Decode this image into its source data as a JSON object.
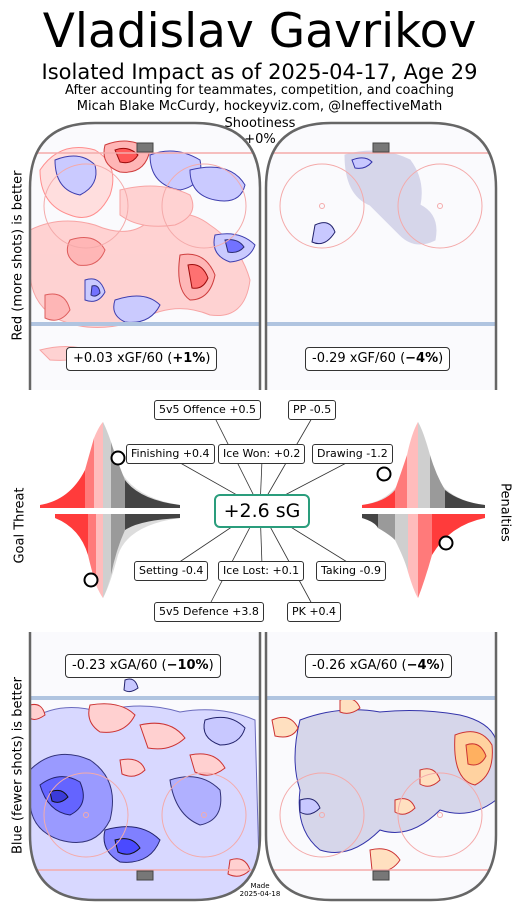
{
  "header": {
    "title": "Vladislav Gavrikov",
    "subtitle": "Isolated Impact as of 2025-04-17, Age 29",
    "credit_line1": "After accounting for teammates, competition, and coaching",
    "credit_line2": "Micah Blake McCurdy, hockeyviz.com, @IneffectiveMath"
  },
  "shootiness": {
    "label": "Shootiness",
    "value": "+0%"
  },
  "side_labels": {
    "top": "Red (more shots) is better",
    "middle": "Goal Threat",
    "bottom": "Blue (fewer shots) is better",
    "right": "Penalties"
  },
  "rink_stats": {
    "offence_even": {
      "value": "+0.03 xGF/60 (",
      "pct": "+1%",
      "close": ")"
    },
    "offence_pp": {
      "value": "-0.29 xGF/60 (",
      "pct": "−4%",
      "close": ")"
    },
    "defence_even": {
      "value": "-0.23 xGA/60 (",
      "pct": "−10%",
      "close": ")"
    },
    "defence_pk": {
      "value": "-0.26 xGA/60 (",
      "pct": "−4%",
      "close": ")"
    }
  },
  "impact_boxes": {
    "offence": "5v5 Offence +0.5",
    "pp": "PP -0.5",
    "finishing": "Finishing +0.4",
    "ice_won": "Ice Won: +0.2",
    "drawing": "Drawing -1.2",
    "setting": "Setting -0.4",
    "ice_lost": "Ice Lost: +0.1",
    "taking": "Taking -0.9",
    "defence": "5v5 Defence +3.8",
    "pk": "PK +0.4",
    "total": "+2.6 sG"
  },
  "made": {
    "label": "Made",
    "date": "2025-04-18"
  },
  "colors": {
    "better_red": "#ff5a5a",
    "better_blue": "#5a5aff",
    "sg_border": "#2a9d7c",
    "rink_line": "#666666",
    "pp_shade": "#d6d6ea"
  },
  "chart_data": {
    "type": "heatmap",
    "title": "Vladislav Gavrikov",
    "subtitle": "Isolated Impact as of 2025-04-17, Age 29",
    "panels": [
      {
        "name": "5v5 offence",
        "xGF_per_60": 0.03,
        "pct": 1
      },
      {
        "name": "PP offence",
        "xGF_per_60": -0.29,
        "pct": -4
      },
      {
        "name": "5v5 defence",
        "xGA_per_60": -0.23,
        "pct": -10
      },
      {
        "name": "PK defence",
        "xGA_per_60": -0.26,
        "pct": -4
      }
    ],
    "goal_threat": {
      "finishing": 0.4,
      "setting": -0.4,
      "finishing_percentile": 0.15,
      "setting_percentile": 0.15
    },
    "penalties": {
      "drawing": -1.2,
      "taking": -0.9,
      "drawing_percentile": 0.2,
      "taking_percentile": 0.85
    },
    "impacts_sG": {
      "offence_5v5": 0.5,
      "pp": -0.5,
      "finishing": 0.4,
      "ice_won": 0.2,
      "drawing": -1.2,
      "setting": -0.4,
      "ice_lost": 0.1,
      "taking": -0.9,
      "defence_5v5": 3.8,
      "pk": 0.4,
      "total": 2.6
    }
  }
}
